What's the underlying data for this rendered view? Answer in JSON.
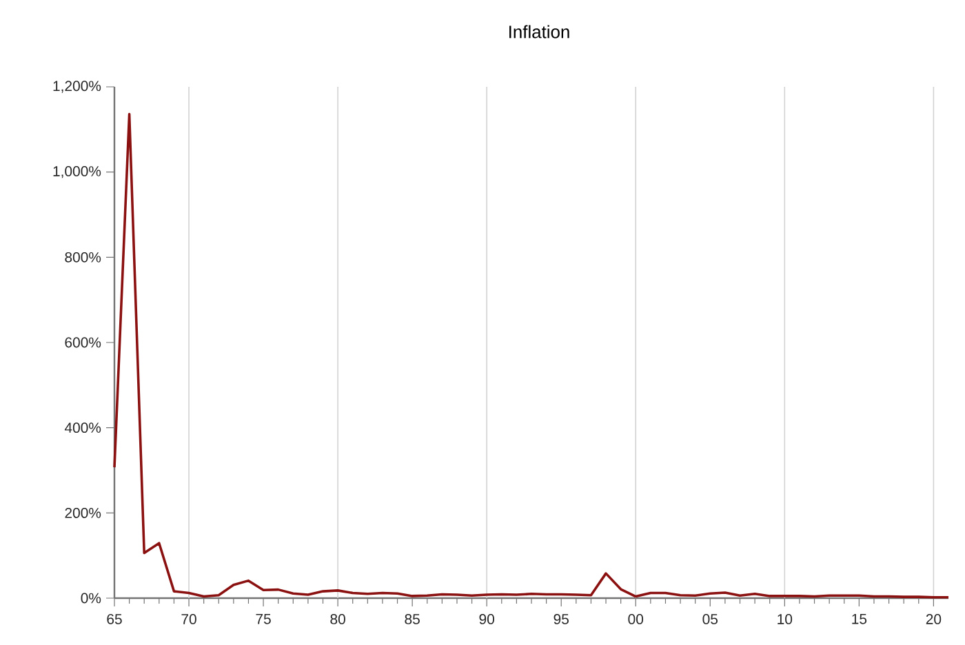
{
  "chart_data": {
    "type": "line",
    "title": "Inflation",
    "x": [
      1965,
      1966,
      1967,
      1968,
      1969,
      1970,
      1971,
      1972,
      1973,
      1974,
      1975,
      1976,
      1977,
      1978,
      1979,
      1980,
      1981,
      1982,
      1983,
      1984,
      1985,
      1986,
      1987,
      1988,
      1989,
      1990,
      1991,
      1992,
      1993,
      1994,
      1995,
      1996,
      1997,
      1998,
      1999,
      2000,
      2001,
      2002,
      2003,
      2004,
      2005,
      2006,
      2007,
      2008,
      2009,
      2010,
      2011,
      2012,
      2013,
      2014,
      2015,
      2016,
      2017,
      2018,
      2019,
      2020,
      2021
    ],
    "series": [
      {
        "color": "#8b1111",
        "values": [
          307,
          1136,
          106,
          129,
          16,
          12,
          4,
          7,
          31,
          41,
          19,
          20,
          11,
          8,
          16,
          18,
          12,
          10,
          12,
          11,
          5,
          6,
          9,
          8,
          6,
          8,
          9,
          8,
          10,
          9,
          9,
          8,
          7,
          58,
          21,
          4,
          12,
          12,
          7,
          6,
          11,
          13,
          6,
          10,
          5,
          5,
          5,
          4,
          6,
          6,
          6,
          4,
          4,
          3,
          3,
          2,
          2
        ]
      }
    ],
    "xlim": [
      1965,
      2021
    ],
    "ylim": [
      0,
      1200
    ],
    "xticks": [
      {
        "value": 1965,
        "label": "65"
      },
      {
        "value": 1970,
        "label": "70"
      },
      {
        "value": 1975,
        "label": "75"
      },
      {
        "value": 1980,
        "label": "80"
      },
      {
        "value": 1985,
        "label": "85"
      },
      {
        "value": 1990,
        "label": "90"
      },
      {
        "value": 1995,
        "label": "95"
      },
      {
        "value": 2000,
        "label": "00"
      },
      {
        "value": 2005,
        "label": "05"
      },
      {
        "value": 2010,
        "label": "10"
      },
      {
        "value": 2015,
        "label": "15"
      },
      {
        "value": 2020,
        "label": "20"
      }
    ],
    "yticks": [
      {
        "value": 0,
        "label": "0%"
      },
      {
        "value": 200,
        "label": "200%"
      },
      {
        "value": 400,
        "label": "400%"
      },
      {
        "value": 600,
        "label": "600%"
      },
      {
        "value": 800,
        "label": "800%"
      },
      {
        "value": 1000,
        "label": "1,000%"
      },
      {
        "value": 1200,
        "label": "1,200%"
      }
    ],
    "grid": "x"
  }
}
